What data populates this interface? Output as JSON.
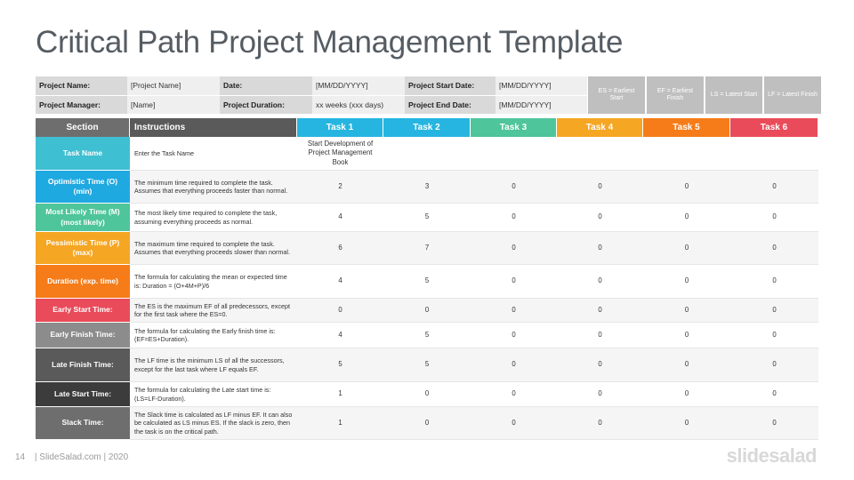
{
  "title": "Critical Path Project Management Template",
  "info": {
    "project_name_label": "Project Name:",
    "project_name_value": "[Project Name]",
    "date_label": "Date:",
    "date_value": "[MM/DD/YYYY]",
    "start_date_label": "Project Start Date:",
    "start_date_value": "[MM/DD/YYYY]",
    "manager_label": "Project Manager:",
    "manager_value": "[Name]",
    "duration_label": "Project Duration:",
    "duration_value": "xx weeks (xxx days)",
    "end_date_label": "Project End Date:",
    "end_date_value": "[MM/DD/YYYY]"
  },
  "legend": [
    "ES = Earliest Start",
    "EF = Earliest Finish",
    "LS = Latest Start",
    "LF = Latest Finish"
  ],
  "header": {
    "section": "Section",
    "instructions": "Instructions",
    "tasks": [
      "Task 1",
      "Task 2",
      "Task 3",
      "Task 4",
      "Task 5",
      "Task 6"
    ]
  },
  "task_colors": [
    "#26b5e0",
    "#26b5e0",
    "#4ec59b",
    "#f5a623",
    "#f57c19",
    "#e94b5a"
  ],
  "rows": [
    {
      "section": "Task Name",
      "color": "#3fbfd2",
      "instructions": "Enter the Task Name",
      "values": [
        "Start Development of Project Management Book",
        "",
        "",
        "",
        "",
        ""
      ]
    },
    {
      "section": "Optimistic Time (O) (min)",
      "color": "#1fa9e1",
      "instructions": "The minimum time required to complete the task. Assumes that everything proceeds faster than normal.",
      "values": [
        "2",
        "3",
        "0",
        "0",
        "0",
        "0"
      ]
    },
    {
      "section": "Most Likely Time (M) (most likely)",
      "color": "#4ec59b",
      "instructions": "The most likely time required to complete the task, assuming everything proceeds as normal.",
      "values": [
        "4",
        "5",
        "0",
        "0",
        "0",
        "0"
      ]
    },
    {
      "section": "Pessimistic Time (P) (max)",
      "color": "#f5a623",
      "instructions": "The maximum time required to complete the task. Assumes that everything proceeds slower than normal.",
      "values": [
        "6",
        "7",
        "0",
        "0",
        "0",
        "0"
      ]
    },
    {
      "section": "Duration (exp. time)",
      "color": "#f57c19",
      "instructions": "The formula for calculating the mean or expected time is: Duration = (O+4M+P)/6",
      "values": [
        "4",
        "5",
        "0",
        "0",
        "0",
        "0"
      ]
    },
    {
      "section": "Early Start Time:",
      "color": "#e94b5a",
      "instructions": "The ES is the maximum EF of all predecessors, except for the first task where the ES=0.",
      "values": [
        "0",
        "0",
        "0",
        "0",
        "0",
        "0"
      ]
    },
    {
      "section": "Early Finish Time:",
      "color": "#8c8c8c",
      "instructions": "The formula for calculating the Early finish time is: (EF=ES+Duration).",
      "values": [
        "4",
        "5",
        "0",
        "0",
        "0",
        "0"
      ]
    },
    {
      "section": "Late Finish Time:",
      "color": "#5a5a5a",
      "instructions": "The LF time is the minimum LS of all the successors, except for the last task where LF equals EF.",
      "values": [
        "5",
        "5",
        "0",
        "0",
        "0",
        "0"
      ]
    },
    {
      "section": "Late Start Time:",
      "color": "#3c3c3c",
      "instructions": "The formula for calculating the Late start time is: (LS=LF-Duration).",
      "values": [
        "1",
        "0",
        "0",
        "0",
        "0",
        "0"
      ]
    },
    {
      "section": "Slack Time:",
      "color": "#6e6e6e",
      "instructions": "The Slack time is calculated as LF minus EF. It can also be calculated as LS minus ES. If the slack is zero, then the task is on the critical path.",
      "values": [
        "1",
        "0",
        "0",
        "0",
        "0",
        "0"
      ]
    }
  ],
  "footer": {
    "page_number": "14",
    "credit": "| SlideSalad.com | 2020"
  },
  "logo": "slidesalad"
}
